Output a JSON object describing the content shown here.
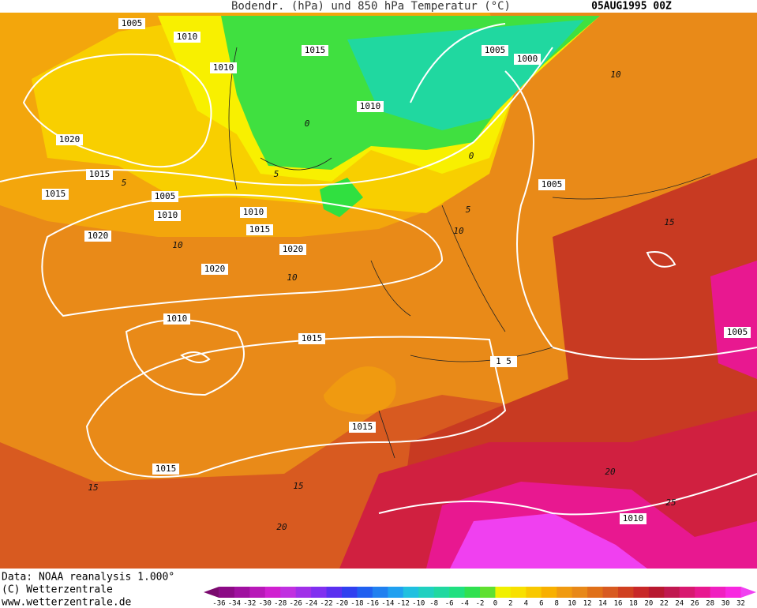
{
  "header": {
    "title": "Bodendr. (hPa) und 850 hPa Temperatur (°C)",
    "date": "05AUG1995 00Z"
  },
  "isobar_labels": [
    "1005",
    "1010",
    "1015",
    "1010",
    "1005",
    "1000",
    "1010",
    "1020",
    "1015",
    "1015",
    "1005",
    "1010",
    "1010",
    "1015",
    "1020",
    "1020",
    "1020",
    "1010",
    "1015",
    "1005",
    "1 5",
    "1015",
    "1015",
    "1010",
    "1005"
  ],
  "temperature_labels": [
    "10",
    "5",
    "5",
    "10",
    "10",
    "10",
    "15",
    "15",
    "15",
    "20",
    "20",
    "25",
    "0",
    "5",
    "0"
  ],
  "footer": {
    "source": "Data: NOAA reanalysis 1.000°",
    "copyright": "(C) Wetterzentrale",
    "url": "www.wetterzentrale.de"
  },
  "colorbar": {
    "ticks": [
      -36,
      -34,
      -32,
      -30,
      -28,
      -26,
      -24,
      -22,
      -20,
      -18,
      -16,
      -14,
      -12,
      -10,
      -8,
      -6,
      -4,
      -2,
      0,
      2,
      4,
      6,
      8,
      10,
      12,
      14,
      16,
      18,
      20,
      22,
      24,
      26,
      28,
      30,
      32
    ],
    "colors": [
      "#7a0a6e",
      "#8c0a86",
      "#a010a0",
      "#b818b8",
      "#d020d0",
      "#c030e0",
      "#a030e8",
      "#8030f0",
      "#5a30f0",
      "#3040f0",
      "#2060f0",
      "#2080f0",
      "#20a0f0",
      "#20c0e0",
      "#20d0c0",
      "#20d8a0",
      "#20e080",
      "#30e050",
      "#60e030",
      "#f0f000",
      "#f8e000",
      "#f8c800",
      "#f8b000",
      "#f09a10",
      "#e88818",
      "#e07018",
      "#d85a20",
      "#d04020",
      "#c82828",
      "#b81830",
      "#c01850",
      "#d81870",
      "#e81890",
      "#f020c0",
      "#f828e0",
      "#f040f0"
    ]
  }
}
